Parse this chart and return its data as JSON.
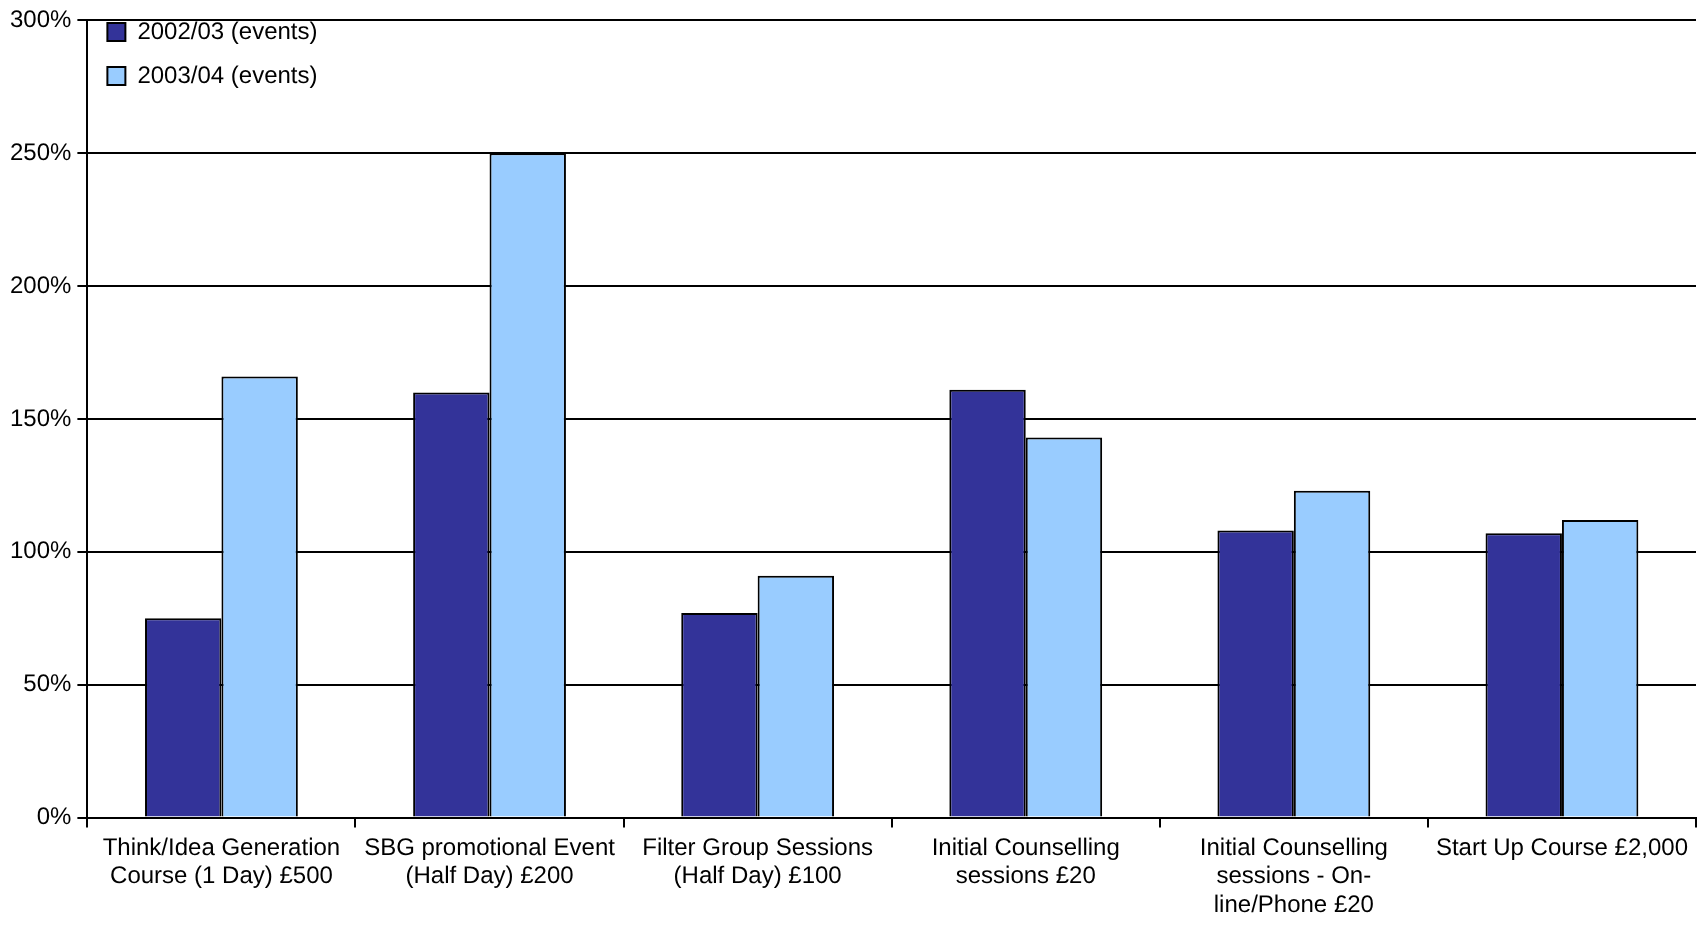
{
  "chart_data": {
    "type": "bar",
    "categories": [
      "Think/Idea Generation Course (1 Day) £500",
      "SBG promotional Event (Half Day) £200",
      "Filter Group Sessions (Half Day) £100",
      "Initial Counselling sessions £20",
      "Initial Counselling sessions - On-line/Phone £20",
      "Start Up Course £2,000"
    ],
    "series": [
      {
        "name": "2002/03 (events)",
        "color": "#333399",
        "values": [
          75,
          160,
          77,
          161,
          108,
          107
        ]
      },
      {
        "name": "2003/04 (events)",
        "color": "#99ccff",
        "values": [
          166,
          250,
          91,
          143,
          123,
          112
        ]
      }
    ],
    "ylim": [
      0,
      300
    ],
    "yticks": [
      {
        "value": 0,
        "label": "0%"
      },
      {
        "value": 50,
        "label": "50%"
      },
      {
        "value": 100,
        "label": "100%"
      },
      {
        "value": 150,
        "label": "150%"
      },
      {
        "value": 200,
        "label": "200%"
      },
      {
        "value": 250,
        "label": "250%"
      },
      {
        "value": 300,
        "label": "300%"
      }
    ],
    "grid": "y",
    "legend": "top left"
  }
}
